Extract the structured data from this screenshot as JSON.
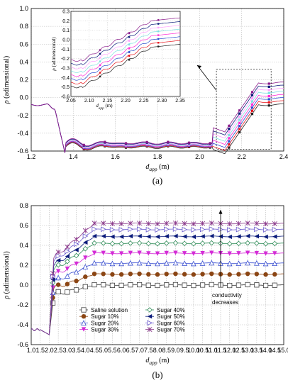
{
  "chart_data": [
    {
      "type": "line",
      "panel": "(a)",
      "xlabel": "d_app (m)",
      "ylabel": "ρ (adimensional)",
      "xlim": [
        1.2,
        2.4
      ],
      "ylim": [
        -0.6,
        1.0
      ],
      "xticks": [
        1.2,
        1.4,
        1.6,
        1.8,
        2.0,
        2.2,
        2.4
      ],
      "yticks": [
        -0.6,
        -0.4,
        -0.2,
        0.0,
        0.2,
        0.4,
        0.6,
        0.8,
        1.0
      ],
      "grid": true,
      "inset_box_x": [
        2.08,
        2.34
      ],
      "inset_box_y": [
        -0.58,
        0.32
      ],
      "series_colors": [
        "#222222",
        "#e8141b",
        "#2b4fd0",
        "#ff2bd6",
        "#7ee0e0",
        "#ffa2ff",
        "#0a1a7a",
        "#8b1a8b"
      ],
      "inset": {
        "xlabel": "d_app (m)",
        "ylabel": "ρ (adimensional)",
        "xlim": [
          2.05,
          2.35
        ],
        "ylim": [
          -0.6,
          0.3
        ],
        "xticks": [
          2.05,
          2.1,
          2.15,
          2.2,
          2.25,
          2.3,
          2.35
        ],
        "yticks": [
          -0.6,
          -0.5,
          -0.4,
          -0.3,
          -0.2,
          -0.1,
          0.0,
          0.1,
          0.2,
          0.3
        ]
      }
    },
    {
      "type": "line",
      "panel": "(b)",
      "xlabel": "d_app (m)",
      "ylabel": "ρ (adimensional)",
      "xlim": [
        1.0,
        15.0
      ],
      "ylim": [
        -0.6,
        0.8
      ],
      "xticks": [
        1.0,
        1.5,
        2.0,
        2.5,
        3.0,
        3.5,
        4.0,
        4.5,
        5.0,
        5.5,
        6.0,
        6.5,
        7.0,
        7.5,
        8.0,
        8.5,
        9.0,
        9.5,
        10.0,
        10.5,
        11.0,
        11.5,
        12.0,
        12.5,
        13.0,
        13.5,
        14.0,
        14.5,
        15.0
      ],
      "yticks": [
        -0.6,
        -0.4,
        -0.2,
        0.0,
        0.2,
        0.4,
        0.6,
        0.8
      ],
      "grid": true,
      "annotation": "conductivity\ndecreases",
      "series": [
        {
          "name": "Saline solution",
          "plateau": 0.0,
          "color": "#404040",
          "marker": "square-open"
        },
        {
          "name": "Sugar 10%",
          "plateau": 0.11,
          "color": "#8b4513",
          "marker": "circle-filled"
        },
        {
          "name": "Sugar 20%",
          "plateau": 0.22,
          "color": "#3a4fd0",
          "marker": "triangle-up-open"
        },
        {
          "name": "Sugar 30%",
          "plateau": 0.32,
          "color": "#d42bd6",
          "marker": "triangle-down-filled"
        },
        {
          "name": "Sugar 40%",
          "plateau": 0.42,
          "color": "#2e8b57",
          "marker": "diamond-open"
        },
        {
          "name": "Sugar 50%",
          "plateau": 0.49,
          "color": "#0a1a7a",
          "marker": "triangle-left-filled"
        },
        {
          "name": "Sugar 60%",
          "plateau": 0.56,
          "color": "#6a5acd",
          "marker": "triangle-right-open"
        },
        {
          "name": "Sugar 70%",
          "plateau": 0.62,
          "color": "#8b3a8b",
          "marker": "asterisk"
        }
      ]
    }
  ]
}
